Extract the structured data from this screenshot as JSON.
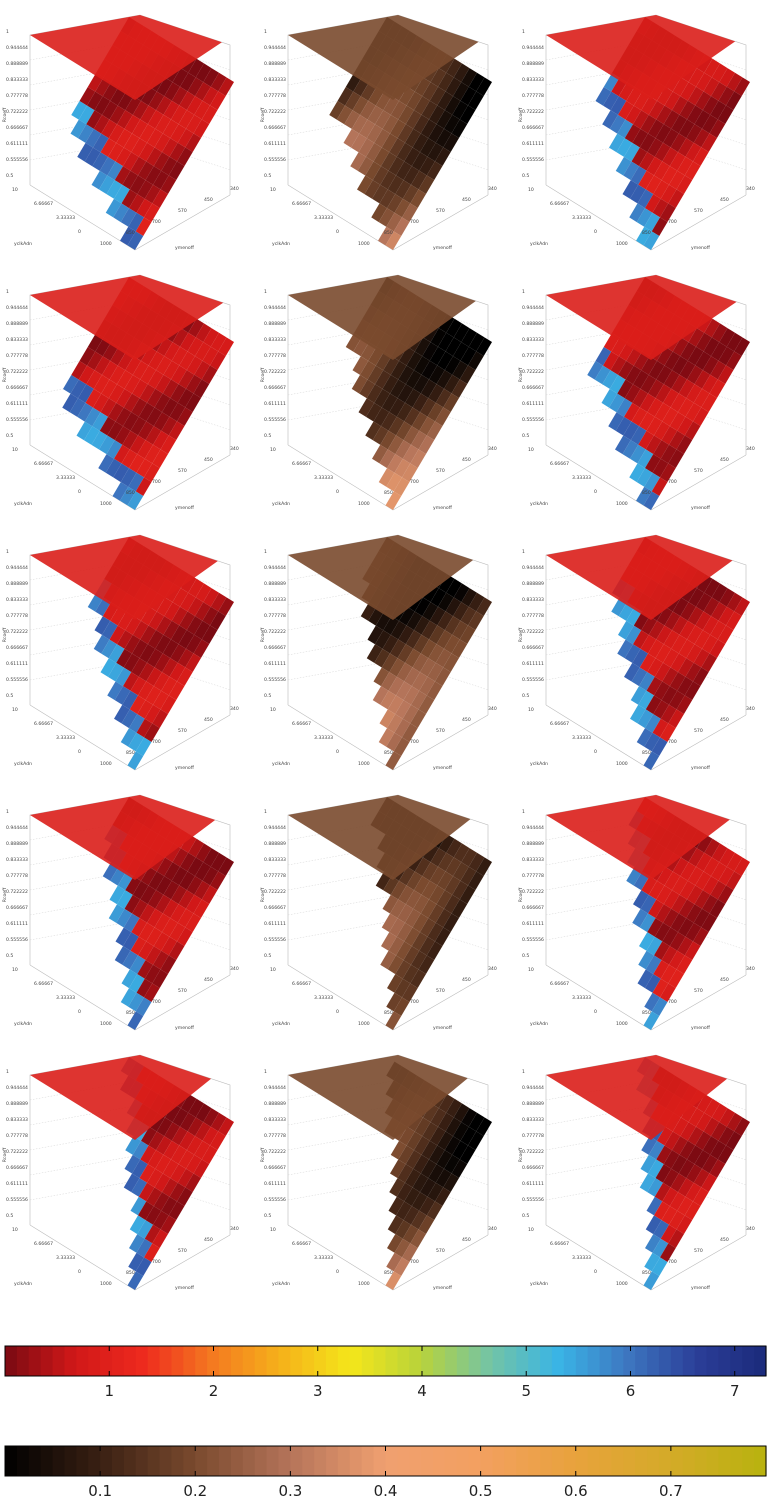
{
  "chart_data": {
    "type": "surface3d",
    "layout": {
      "rows": 5,
      "cols": 3
    },
    "axes": {
      "z_label": "Rcoeff",
      "y_label": "yclkAdn",
      "x_label": "ymenoff",
      "z_ticks": [
        "1",
        "0.944444",
        "0.888889",
        "0.833333",
        "0.777778",
        "0.722222",
        "0.666667",
        "0.611111",
        "0.555556",
        "0.5"
      ],
      "y_ticks": [
        "10",
        "6.66667",
        "3.33333",
        "0"
      ],
      "x_ticks": [
        "1000",
        "850",
        "700",
        "570",
        "450",
        "340"
      ]
    },
    "panels": [
      {
        "row": 0,
        "col": 0,
        "colormap": "jet",
        "cut": 0.3
      },
      {
        "row": 0,
        "col": 1,
        "colormap": "copper",
        "cut": 0.35
      },
      {
        "row": 0,
        "col": 2,
        "colormap": "jet",
        "cut": 0.4
      },
      {
        "row": 1,
        "col": 0,
        "colormap": "jet",
        "cut": 0.25
      },
      {
        "row": 1,
        "col": 1,
        "colormap": "copper",
        "cut": 0.45
      },
      {
        "row": 1,
        "col": 2,
        "colormap": "jet",
        "cut": 0.35
      },
      {
        "row": 2,
        "col": 0,
        "colormap": "jet",
        "cut": 0.45
      },
      {
        "row": 2,
        "col": 1,
        "colormap": "copper",
        "cut": 0.55
      },
      {
        "row": 2,
        "col": 2,
        "colormap": "jet",
        "cut": 0.5
      },
      {
        "row": 3,
        "col": 0,
        "colormap": "jet",
        "cut": 0.55
      },
      {
        "row": 3,
        "col": 1,
        "colormap": "copper",
        "cut": 0.65
      },
      {
        "row": 3,
        "col": 2,
        "colormap": "jet",
        "cut": 0.6
      },
      {
        "row": 4,
        "col": 0,
        "colormap": "jet",
        "cut": 0.7
      },
      {
        "row": 4,
        "col": 1,
        "colormap": "copper",
        "cut": 0.75
      },
      {
        "row": 4,
        "col": 2,
        "colormap": "jet",
        "cut": 0.7
      }
    ],
    "colorbars": [
      {
        "name": "jet",
        "range": [
          0,
          7.3
        ],
        "ticks": [
          1,
          2,
          3,
          4,
          5,
          6,
          7
        ],
        "tick_labels": [
          "1",
          "2",
          "3",
          "4",
          "5",
          "6",
          "7"
        ],
        "stops": [
          "#7a0a12",
          "#d01818",
          "#ee2a1e",
          "#f47a20",
          "#f5b21a",
          "#f4e61a",
          "#b9d33a",
          "#74c4a4",
          "#3ab4e6",
          "#3d76c0",
          "#2b3e98",
          "#1b2a7a"
        ]
      },
      {
        "name": "copper",
        "range": [
          0,
          0.8
        ],
        "ticks": [
          0.1,
          0.2,
          0.3,
          0.4,
          0.5,
          0.6,
          0.7
        ],
        "tick_labels": [
          "0.1",
          "0.2",
          "0.3",
          "0.4",
          "0.5",
          "0.6",
          "0.7"
        ],
        "stops": [
          "#000000",
          "#3a2013",
          "#7a4a2e",
          "#b5745a",
          "#f0a070",
          "#f3a060",
          "#e8a23c",
          "#d4aa28",
          "#b8b20e"
        ]
      }
    ]
  }
}
